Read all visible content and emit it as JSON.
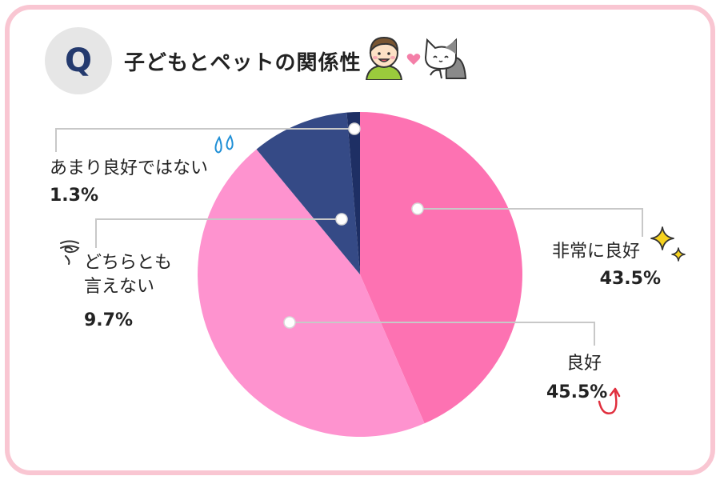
{
  "header": {
    "q_label": "Q",
    "title": "子どもとペットの関係性"
  },
  "icons": {
    "child": "child-icon",
    "heart": "heart-icon",
    "cat": "cat-icon",
    "sparkle": "sparkle-icon",
    "sweat": "sweat-drops-icon",
    "swirl": "confused-swirl-icon",
    "arrow": "up-arrow-icon"
  },
  "colors": {
    "frame": "#f9c6d2",
    "very_good": "#fd72b2",
    "good": "#fe93cf",
    "neutral": "#354a86",
    "not_good": "#1e2f64",
    "q_badge_bg": "#e6e6e6",
    "q_badge_text": "#243a6e"
  },
  "chart_data": {
    "type": "pie",
    "title": "子どもとペットの関係性",
    "start_angle_deg": 0,
    "direction": "clockwise",
    "slices": [
      {
        "label": "非常に良好",
        "value": 43.5,
        "display": "43.5%",
        "color": "#fd72b2"
      },
      {
        "label": "良好",
        "value": 45.5,
        "display": "45.5%",
        "color": "#fe93cf"
      },
      {
        "label": "どちらとも言えない",
        "label_lines": [
          "どちらとも",
          "言えない"
        ],
        "value": 9.7,
        "display": "9.7%",
        "color": "#354a86"
      },
      {
        "label": "あまり良好ではない",
        "value": 1.3,
        "display": "1.3%",
        "color": "#1e2f64"
      }
    ]
  }
}
